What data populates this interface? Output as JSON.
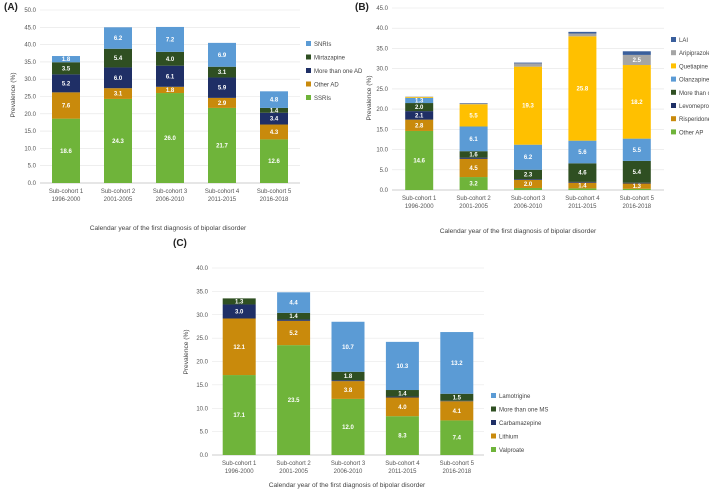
{
  "figure": {
    "categories": [
      [
        "Sub-cohort 1",
        "1996-2000"
      ],
      [
        "Sub-cohort 2",
        "2001-2005"
      ],
      [
        "Sub-cohort 3",
        "2006-2010"
      ],
      [
        "Sub-cohort 4",
        "2011-2015"
      ],
      [
        "Sub-cohort 5",
        "2016-2018"
      ]
    ],
    "xlabel": "Calendar year of the first diagnosis of bipolar disorder",
    "ylabel": "Prevalence (%)"
  },
  "chart_data": [
    {
      "panel": "(A)",
      "type": "bar",
      "stacked": true,
      "ylim": [
        0,
        50
      ],
      "ytick_step": 5,
      "ytick_decimals": 1,
      "series": [
        {
          "name": "SSRIs",
          "color": "#6fb43a",
          "values": [
            18.6,
            24.3,
            26.0,
            21.7,
            12.6
          ],
          "labels": [
            "18.6",
            "24.3",
            "26.0",
            "21.7",
            "12.6"
          ]
        },
        {
          "name": "Other AD",
          "color": "#c98a0c",
          "values": [
            7.6,
            3.1,
            1.8,
            2.9,
            4.3
          ],
          "labels": [
            "7.6",
            "3.1",
            "1.8",
            "2.9",
            "4.3"
          ]
        },
        {
          "name": "More than one AD",
          "color": "#1f2f66",
          "values": [
            5.2,
            6.0,
            6.1,
            5.9,
            3.4
          ],
          "labels": [
            "5.2",
            "6.0",
            "6.1",
            "5.9",
            "3.4"
          ]
        },
        {
          "name": "Mirtazapine",
          "color": "#2f4f22",
          "values": [
            3.5,
            5.4,
            4.0,
            3.1,
            1.4
          ],
          "labels": [
            "3.5",
            "5.4",
            "4.0",
            "3.1",
            "1.4"
          ]
        },
        {
          "name": "SNRIs",
          "color": "#5b9bd5",
          "values": [
            1.8,
            6.2,
            7.2,
            6.9,
            4.8
          ],
          "labels": [
            "1.8",
            "6.2",
            "7.2",
            "6.9",
            "4.8"
          ]
        }
      ]
    },
    {
      "panel": "(B)",
      "type": "bar",
      "stacked": true,
      "ylim": [
        0,
        45
      ],
      "ytick_step": 5,
      "ytick_decimals": 1,
      "series": [
        {
          "name": "Other AP",
          "color": "#6fb43a",
          "values": [
            14.6,
            3.2,
            0.5,
            0.4,
            0.3
          ],
          "labels": [
            "14.6",
            "3.2",
            "",
            "",
            ""
          ]
        },
        {
          "name": "Risperidone",
          "color": "#c98a0c",
          "values": [
            2.8,
            4.5,
            2.0,
            1.4,
            1.3
          ],
          "labels": [
            "2.8",
            "4.5",
            "2.0",
            "1.4",
            "1.3"
          ]
        },
        {
          "name": "Levomepromazine",
          "color": "#1f2f66",
          "values": [
            2.1,
            0.3,
            0.2,
            0.2,
            0.2
          ],
          "labels": [
            "2.1",
            "",
            "",
            "",
            ""
          ]
        },
        {
          "name": "More than one AP",
          "color": "#2f4f22",
          "values": [
            2.0,
            1.6,
            2.3,
            4.6,
            5.4
          ],
          "labels": [
            "2.0",
            "1.6",
            "2.3",
            "4.6",
            "5.4"
          ]
        },
        {
          "name": "Olanzapine",
          "color": "#5b9bd5",
          "values": [
            1.3,
            6.1,
            6.2,
            5.6,
            5.5
          ],
          "labels": [
            "1.3",
            "6.1",
            "6.2",
            "5.6",
            "5.5"
          ]
        },
        {
          "name": "Quetiapine",
          "color": "#ffc000",
          "values": [
            0.2,
            5.5,
            19.3,
            25.8,
            18.2
          ],
          "labels": [
            "",
            "5.5",
            "19.3",
            "25.8",
            "18.2"
          ]
        },
        {
          "name": "Aripiprazole",
          "color": "#a5a5a5",
          "values": [
            0.1,
            0.2,
            0.8,
            0.7,
            2.5
          ],
          "labels": [
            "",
            "",
            "",
            "",
            "2.5"
          ]
        },
        {
          "name": "LAI",
          "color": "#3a5f9c",
          "values": [
            0.0,
            0.1,
            0.2,
            0.4,
            0.9
          ],
          "labels": [
            "",
            "",
            "",
            "",
            ""
          ]
        }
      ]
    },
    {
      "panel": "(C)",
      "type": "bar",
      "stacked": true,
      "ylim": [
        0,
        40
      ],
      "ytick_step": 5,
      "ytick_decimals": 1,
      "series": [
        {
          "name": "Valproate",
          "color": "#6fb43a",
          "values": [
            17.1,
            23.5,
            12.0,
            8.3,
            7.4
          ],
          "labels": [
            "17.1",
            "23.5",
            "12.0",
            "8.3",
            "7.4"
          ]
        },
        {
          "name": "Lithium",
          "color": "#c98a0c",
          "values": [
            12.1,
            5.2,
            3.8,
            4.0,
            4.1
          ],
          "labels": [
            "12.1",
            "5.2",
            "3.8",
            "4.0",
            "4.1"
          ]
        },
        {
          "name": "Carbamazepine",
          "color": "#1f2f66",
          "values": [
            3.0,
            0.3,
            0.2,
            0.2,
            0.1
          ],
          "labels": [
            "3.0",
            "",
            "",
            "",
            ""
          ]
        },
        {
          "name": "More than one MS",
          "color": "#2f4f22",
          "values": [
            1.3,
            1.4,
            1.8,
            1.4,
            1.5
          ],
          "labels": [
            "1.3",
            "1.4",
            "1.8",
            "1.4",
            "1.5"
          ]
        },
        {
          "name": "Lamotrigine",
          "color": "#5b9bd5",
          "values": [
            0.0,
            4.4,
            10.7,
            10.3,
            13.2
          ],
          "labels": [
            "",
            "4.4",
            "10.7",
            "10.3",
            "13.2"
          ]
        }
      ]
    }
  ]
}
